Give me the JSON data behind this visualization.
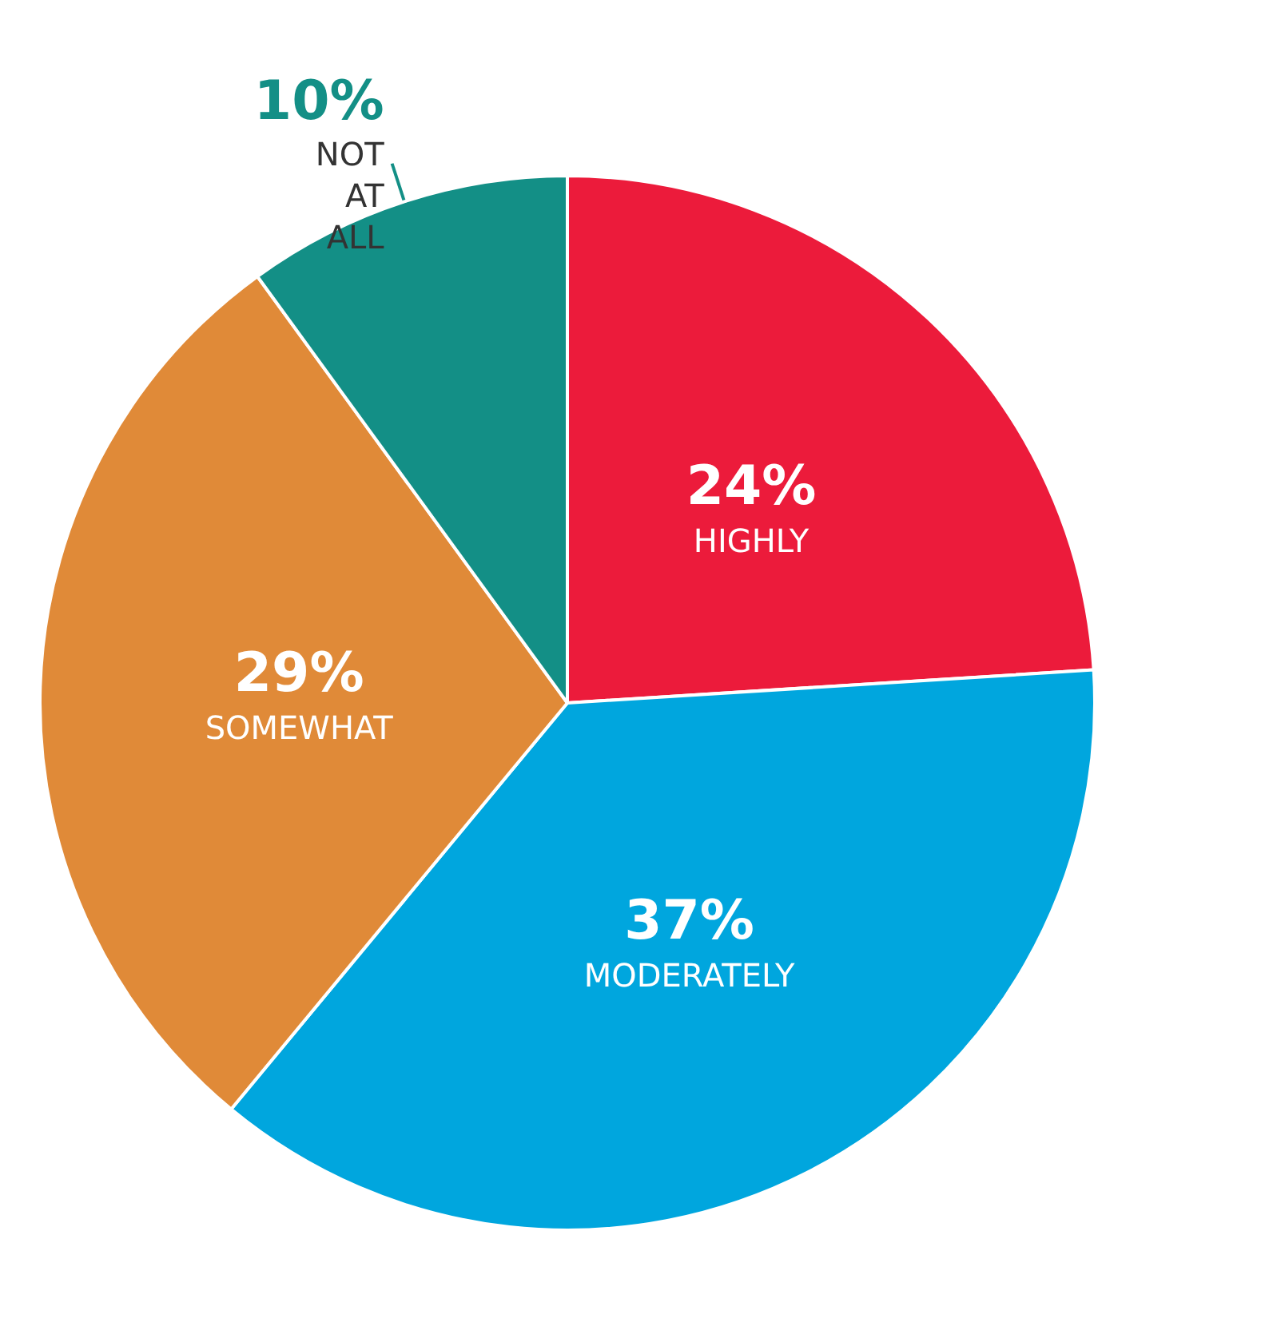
{
  "chart_data": {
    "type": "pie",
    "categories": [
      "HIGHLY",
      "MODERATELY",
      "SOMEWHAT",
      "NOT AT ALL"
    ],
    "values": [
      24,
      37,
      29,
      10
    ],
    "value_labels": [
      "24%",
      "37%",
      "29%",
      "10%"
    ],
    "colors": [
      "#ec1b3b",
      "#00a6de",
      "#e08a38",
      "#138f86"
    ]
  }
}
